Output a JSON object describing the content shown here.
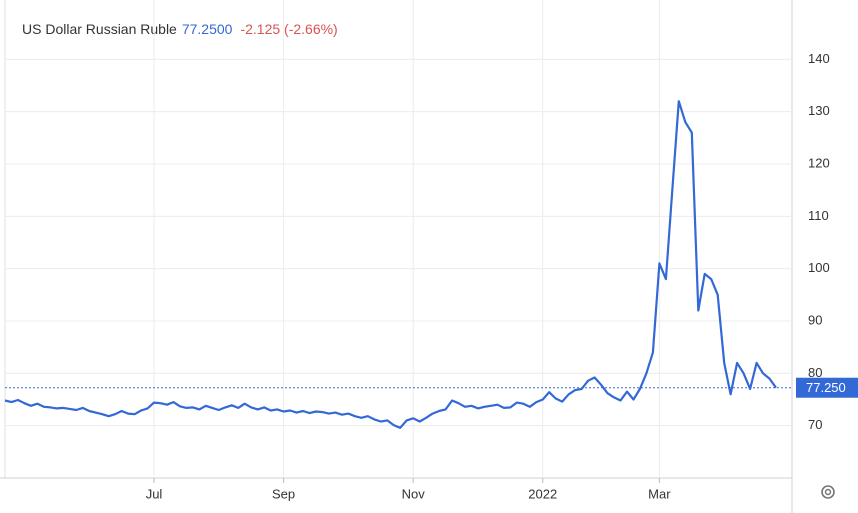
{
  "chart_data": {
    "type": "line",
    "title": "US Dollar Russian Ruble",
    "price": "77.2500",
    "change": "-2.125 (-2.66%)",
    "last_label": "77.250",
    "color": "#3369d6",
    "categories": [
      null,
      null,
      null,
      null,
      null,
      null,
      null,
      null,
      null,
      null,
      null,
      null,
      null,
      null,
      null,
      null,
      null,
      null,
      null,
      null,
      null,
      null,
      null,
      "Jul",
      null,
      null,
      null,
      null,
      null,
      null,
      null,
      null,
      null,
      null,
      null,
      null,
      null,
      null,
      null,
      null,
      null,
      null,
      null,
      "Sep",
      null,
      null,
      null,
      null,
      null,
      null,
      null,
      null,
      null,
      null,
      null,
      null,
      null,
      null,
      null,
      null,
      null,
      null,
      null,
      "Nov",
      null,
      null,
      null,
      null,
      null,
      null,
      null,
      null,
      null,
      null,
      null,
      null,
      null,
      null,
      null,
      null,
      null,
      null,
      null,
      "2022",
      null,
      null,
      null,
      null,
      null,
      null,
      null,
      null,
      null,
      null,
      null,
      null,
      null,
      null,
      null,
      null,
      null,
      "Mar",
      null,
      null,
      null,
      null,
      null,
      null,
      null,
      null,
      null,
      null,
      null,
      null,
      null,
      null,
      null,
      null,
      null,
      null
    ],
    "values": [
      74.8,
      74.5,
      74.9,
      74.3,
      73.8,
      74.2,
      73.6,
      73.5,
      73.3,
      73.4,
      73.2,
      73.0,
      73.4,
      72.8,
      72.5,
      72.2,
      71.8,
      72.2,
      72.8,
      72.3,
      72.2,
      72.9,
      73.3,
      74.4,
      74.3,
      74.0,
      74.5,
      73.7,
      73.4,
      73.5,
      73.1,
      73.8,
      73.4,
      73.0,
      73.5,
      73.9,
      73.4,
      74.2,
      73.5,
      73.1,
      73.5,
      72.9,
      73.1,
      72.7,
      72.9,
      72.5,
      72.8,
      72.4,
      72.7,
      72.6,
      72.3,
      72.5,
      72.1,
      72.3,
      71.8,
      71.5,
      71.8,
      71.2,
      70.8,
      71.0,
      70.1,
      69.6,
      71.0,
      71.4,
      70.8,
      71.5,
      72.3,
      72.8,
      73.1,
      74.8,
      74.3,
      73.6,
      73.8,
      73.3,
      73.6,
      73.8,
      74.0,
      73.4,
      73.5,
      74.4,
      74.2,
      73.6,
      74.5,
      75.0,
      76.4,
      75.2,
      74.6,
      76.0,
      76.8,
      77.0,
      78.6,
      79.2,
      77.8,
      76.2,
      75.4,
      74.8,
      76.5,
      75.0,
      77.0,
      80.0,
      84.0,
      101.0,
      98.0,
      115.0,
      132.0,
      128.0,
      126.0,
      92.0,
      99.0,
      98.0,
      95.0,
      82.0,
      76.0,
      82.0,
      80.0,
      77.0,
      82.0,
      80.0,
      79.0,
      77.25
    ],
    "ylim": [
      60,
      150
    ],
    "yticks": [
      70,
      80,
      90,
      100,
      110,
      120,
      130,
      140
    ],
    "grid": true
  }
}
